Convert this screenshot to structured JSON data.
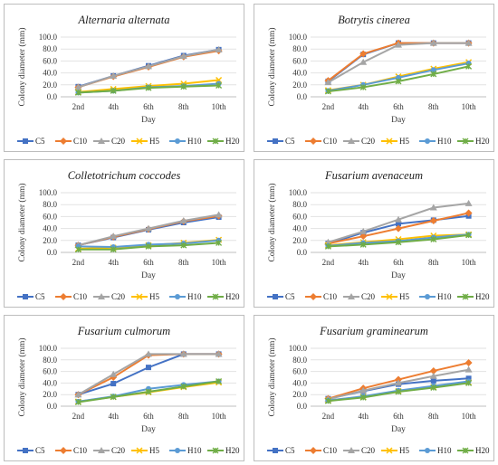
{
  "legend_colors": {
    "C5": "#4472c4",
    "C10": "#ed7d31",
    "C20": "#a5a5a5",
    "H5": "#ffc000",
    "H10": "#5b9bd5",
    "H20": "#70ad47"
  },
  "chart_data": [
    {
      "type": "line",
      "title": "Alternaria alternata",
      "xlabel": "Day",
      "ylabel": "Colony diameter (mm)",
      "categories": [
        "2nd",
        "4th",
        "6th",
        "8th",
        "10th"
      ],
      "yticks": [
        "0.0",
        "20.0",
        "40.0",
        "60.0",
        "80.0",
        "100.0"
      ],
      "ylim": [
        0,
        100
      ],
      "grid": true,
      "legend": "bottom",
      "series": [
        {
          "name": "C5",
          "values": [
            17,
            35,
            52,
            69,
            79
          ]
        },
        {
          "name": "C10",
          "values": [
            16,
            34,
            50,
            67,
            77
          ]
        },
        {
          "name": "C20",
          "values": [
            16,
            35,
            51,
            68,
            79
          ]
        },
        {
          "name": "H5",
          "values": [
            8,
            13,
            18,
            22,
            28
          ]
        },
        {
          "name": "H10",
          "values": [
            7,
            10,
            16,
            18,
            22
          ]
        },
        {
          "name": "H20",
          "values": [
            7,
            10,
            15,
            17,
            19
          ]
        }
      ]
    },
    {
      "type": "line",
      "title": "Botrytis cinerea",
      "xlabel": "Day",
      "ylabel": "Colony diameter (mm)",
      "categories": [
        "2nd",
        "4th",
        "6th",
        "8th",
        "10th"
      ],
      "yticks": [
        "0.0",
        "20.0",
        "40.0",
        "60.0",
        "80.0",
        "100.0"
      ],
      "ylim": [
        0,
        100
      ],
      "grid": true,
      "legend": "bottom",
      "series": [
        {
          "name": "C5",
          "values": [
            26,
            71,
            90,
            90,
            90
          ]
        },
        {
          "name": "C10",
          "values": [
            27,
            72,
            90,
            90,
            90
          ]
        },
        {
          "name": "C20",
          "values": [
            24,
            58,
            87,
            90,
            90
          ]
        },
        {
          "name": "H5",
          "values": [
            11,
            20,
            34,
            47,
            58
          ]
        },
        {
          "name": "H10",
          "values": [
            10,
            20,
            32,
            45,
            56
          ]
        },
        {
          "name": "H20",
          "values": [
            9,
            16,
            26,
            38,
            51
          ]
        }
      ]
    },
    {
      "type": "line",
      "title": "Colletotrichum coccodes",
      "xlabel": "Day",
      "ylabel": "Colony diameter (mm)",
      "categories": [
        "2nd",
        "4th",
        "6th",
        "8th",
        "10th"
      ],
      "yticks": [
        "0.0",
        "20.0",
        "40.0",
        "60.0",
        "80.0",
        "100.0"
      ],
      "ylim": [
        0,
        100
      ],
      "grid": true,
      "legend": "bottom",
      "series": [
        {
          "name": "C5",
          "values": [
            12,
            25,
            38,
            50,
            59
          ]
        },
        {
          "name": "C10",
          "values": [
            12,
            26,
            39,
            52,
            61
          ]
        },
        {
          "name": "C20",
          "values": [
            12,
            27,
            40,
            53,
            63
          ]
        },
        {
          "name": "H5",
          "values": [
            6,
            8,
            12,
            16,
            21
          ]
        },
        {
          "name": "H10",
          "values": [
            10,
            9,
            13,
            15,
            20
          ]
        },
        {
          "name": "H20",
          "values": [
            5,
            5,
            10,
            12,
            16
          ]
        }
      ]
    },
    {
      "type": "line",
      "title": "Fusarium avenaceum",
      "xlabel": "Day",
      "ylabel": "Colony diameter (mm)",
      "categories": [
        "2nd",
        "4th",
        "6th",
        "8th",
        "10th"
      ],
      "yticks": [
        "0.0",
        "20.0",
        "40.0",
        "60.0",
        "80.0",
        "100.0"
      ],
      "ylim": [
        0,
        100
      ],
      "grid": true,
      "legend": "bottom",
      "series": [
        {
          "name": "C5",
          "values": [
            15,
            33,
            48,
            54,
            61
          ]
        },
        {
          "name": "C10",
          "values": [
            15,
            27,
            40,
            53,
            66
          ]
        },
        {
          "name": "C20",
          "values": [
            17,
            35,
            55,
            75,
            82
          ]
        },
        {
          "name": "H5",
          "values": [
            12,
            17,
            22,
            28,
            30
          ]
        },
        {
          "name": "H10",
          "values": [
            11,
            16,
            19,
            25,
            30
          ]
        },
        {
          "name": "H20",
          "values": [
            10,
            13,
            17,
            22,
            29
          ]
        }
      ]
    },
    {
      "type": "line",
      "title": "Fusarium culmorum",
      "xlabel": "Day",
      "ylabel": "Colony diameter (mm)",
      "categories": [
        "2nd",
        "4th",
        "6th",
        "8th",
        "10th"
      ],
      "yticks": [
        "0.0",
        "20.0",
        "40.0",
        "60.0",
        "80.0",
        "100.0"
      ],
      "ylim": [
        0,
        100
      ],
      "grid": true,
      "legend": "bottom",
      "series": [
        {
          "name": "C5",
          "values": [
            20,
            39,
            67,
            90,
            90
          ]
        },
        {
          "name": "C10",
          "values": [
            20,
            50,
            88,
            90,
            90
          ]
        },
        {
          "name": "C20",
          "values": [
            20,
            55,
            90,
            90,
            90
          ]
        },
        {
          "name": "H5",
          "values": [
            8,
            16,
            24,
            33,
            41
          ]
        },
        {
          "name": "H10",
          "values": [
            8,
            17,
            30,
            37,
            43
          ]
        },
        {
          "name": "H20",
          "values": [
            7,
            16,
            25,
            34,
            43
          ]
        }
      ]
    },
    {
      "type": "line",
      "title": "Fusarium graminearum",
      "xlabel": "Day",
      "ylabel": "Colony diameter (mm)",
      "categories": [
        "2nd",
        "4th",
        "6th",
        "8th",
        "10th"
      ],
      "yticks": [
        "0.0",
        "20.0",
        "40.0",
        "60.0",
        "80.0",
        "100.0"
      ],
      "ylim": [
        0,
        100
      ],
      "grid": true,
      "legend": "bottom",
      "series": [
        {
          "name": "C5",
          "values": [
            13,
            26,
            38,
            44,
            48
          ]
        },
        {
          "name": "C10",
          "values": [
            13,
            31,
            46,
            61,
            75
          ]
        },
        {
          "name": "C20",
          "values": [
            12,
            27,
            40,
            52,
            63
          ]
        },
        {
          "name": "H5",
          "values": [
            10,
            16,
            26,
            33,
            41
          ]
        },
        {
          "name": "H10",
          "values": [
            10,
            17,
            27,
            35,
            43
          ]
        },
        {
          "name": "H20",
          "values": [
            9,
            15,
            25,
            32,
            40
          ]
        }
      ]
    }
  ]
}
